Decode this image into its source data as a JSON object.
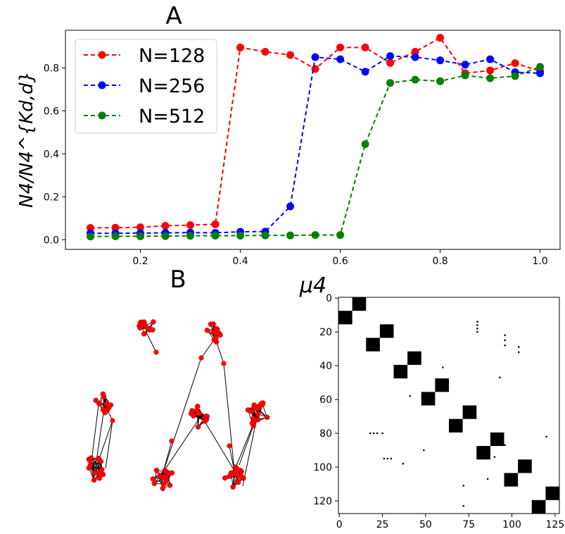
{
  "panel_labels": {
    "a": "A",
    "b": "B"
  },
  "chart_data": [
    {
      "type": "line",
      "xlabel": "μ4",
      "ylabel": "N4/N4^{Kd,d}",
      "xlim": [
        0.05,
        1.04
      ],
      "ylim": [
        -0.045,
        0.975
      ],
      "x_ticks": [
        "0.2",
        "0.4",
        "0.6",
        "0.8",
        "1.0"
      ],
      "y_ticks": [
        "0.0",
        "0.2",
        "0.4",
        "0.6",
        "0.8"
      ],
      "legend_position": "upper-left",
      "x": [
        0.1,
        0.15,
        0.2,
        0.25,
        0.3,
        0.35,
        0.4,
        0.45,
        0.5,
        0.55,
        0.6,
        0.65,
        0.7,
        0.75,
        0.8,
        0.85,
        0.9,
        0.95,
        1.0
      ],
      "series": [
        {
          "name": "N=128",
          "color": "#ff0000",
          "values": [
            0.055,
            0.056,
            0.058,
            0.065,
            0.068,
            0.072,
            0.895,
            0.875,
            0.86,
            0.795,
            0.895,
            0.895,
            0.823,
            0.875,
            0.94,
            0.775,
            0.788,
            0.822,
            0.785
          ]
        },
        {
          "name": "N=256",
          "color": "#0000ff",
          "values": [
            0.03,
            0.03,
            0.031,
            0.032,
            0.033,
            0.032,
            0.037,
            0.038,
            0.155,
            0.85,
            0.84,
            0.782,
            0.855,
            0.85,
            0.835,
            0.815,
            0.84,
            0.78,
            0.775
          ]
        },
        {
          "name": "N=512",
          "color": "#008000",
          "values": [
            0.015,
            0.016,
            0.016,
            0.017,
            0.018,
            0.019,
            0.019,
            0.02,
            0.02,
            0.022,
            0.022,
            0.445,
            0.73,
            0.745,
            0.738,
            0.765,
            0.752,
            0.762,
            0.805
          ]
        }
      ]
    },
    {
      "type": "network",
      "node_color": "#ff0000",
      "edge_color": "#000000",
      "clusters": 10
    },
    {
      "type": "heatmap",
      "x_ticks": [
        "0",
        "25",
        "50",
        "75",
        "100",
        "125"
      ],
      "y_ticks": [
        "0",
        "20",
        "40",
        "60",
        "80",
        "100",
        "120"
      ],
      "xlim": [
        0,
        128
      ],
      "ylim": [
        128,
        0
      ],
      "block_size": 8,
      "cell_color": "#000000",
      "blocks": [
        [
          8,
          0
        ],
        [
          0,
          8
        ],
        [
          24,
          16
        ],
        [
          16,
          24
        ],
        [
          40,
          32
        ],
        [
          32,
          40
        ],
        [
          56,
          48
        ],
        [
          48,
          56
        ],
        [
          72,
          64
        ],
        [
          64,
          72
        ],
        [
          88,
          80
        ],
        [
          80,
          88
        ],
        [
          104,
          96
        ],
        [
          96,
          104
        ],
        [
          120,
          112
        ],
        [
          112,
          120
        ]
      ],
      "sparse_points": [
        [
          80,
          14
        ],
        [
          80,
          16
        ],
        [
          80,
          18
        ],
        [
          80,
          20
        ],
        [
          96,
          22
        ],
        [
          96,
          25
        ],
        [
          96,
          28
        ],
        [
          104,
          29
        ],
        [
          104,
          32
        ],
        [
          60,
          41
        ],
        [
          93,
          47
        ],
        [
          41,
          58
        ],
        [
          18,
          80
        ],
        [
          20,
          80
        ],
        [
          22,
          80
        ],
        [
          25,
          80
        ],
        [
          90,
          81
        ],
        [
          92,
          86
        ],
        [
          96,
          87
        ],
        [
          84,
          94
        ],
        [
          90,
          94
        ],
        [
          26,
          95
        ],
        [
          28,
          95
        ],
        [
          30,
          95
        ],
        [
          37,
          98
        ],
        [
          49,
          90
        ],
        [
          120,
          82
        ],
        [
          100,
          105
        ],
        [
          86,
          107
        ],
        [
          72,
          111
        ],
        [
          72,
          123
        ]
      ]
    }
  ]
}
